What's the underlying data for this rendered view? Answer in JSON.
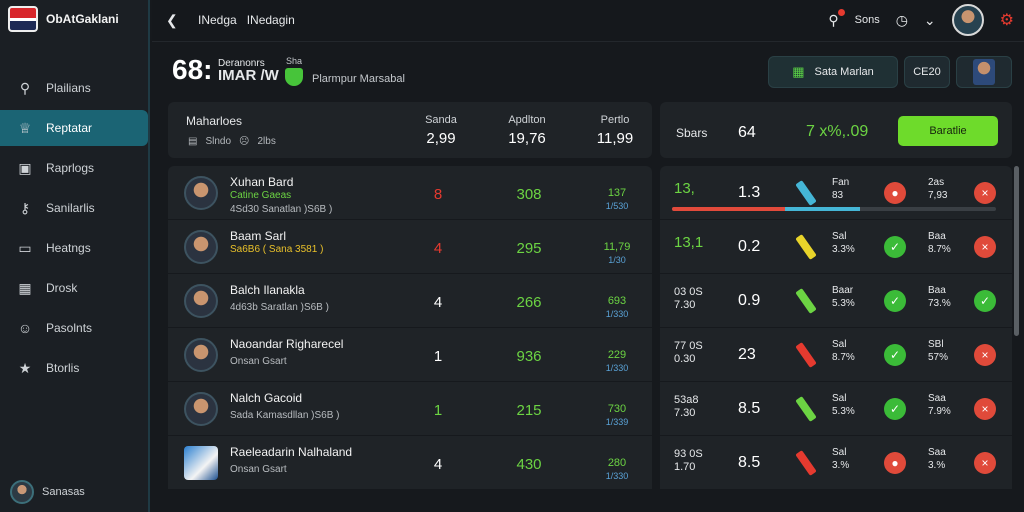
{
  "app": {
    "brand_name": "ObAtGaklani"
  },
  "sidebar": {
    "items": [
      {
        "label": "Plailians",
        "icon": "search-icon"
      },
      {
        "label": "Reptatar",
        "icon": "trophy-icon",
        "active": true
      },
      {
        "label": "Raprlogs",
        "icon": "image-icon"
      },
      {
        "label": "Sanilarlis",
        "icon": "key-icon"
      },
      {
        "label": "Heatngs",
        "icon": "message-icon"
      },
      {
        "label": "Drosk",
        "icon": "book-icon"
      },
      {
        "label": "Pasolnts",
        "icon": "user-icon"
      },
      {
        "label": "Btorlis",
        "icon": "star-icon"
      }
    ],
    "user_name": "Sanasas"
  },
  "topbar": {
    "crumbs": [
      "INedga",
      "INedagin"
    ],
    "search_label": "Sons"
  },
  "match": {
    "score": "68:",
    "score_line1": "Deranonrs",
    "score_line2": "IMAR /W",
    "badge_text": "Sha",
    "subtitle": "Plarmpur Marsabal",
    "primary_button": "Sata Marlan",
    "small_button": "CE20"
  },
  "stats": {
    "title": "Maharloes",
    "meta_a": "Slndo",
    "meta_b": "2lbs",
    "cols": [
      {
        "label": "Sanda",
        "value": "2,99"
      },
      {
        "label": "Apdlton",
        "value": "19,76"
      },
      {
        "label": "Pertlo",
        "value": "11,99"
      }
    ]
  },
  "odds_header": {
    "label": "Sbars",
    "value": "64",
    "green_value": "7  x%,.09",
    "button": "Baratlie"
  },
  "players": [
    {
      "name": "Xuhan Bard",
      "sub": "Catine Gaeas",
      "sub_color": "green",
      "sub2": "4Sd30 Sanatlan )S6B )",
      "c1": "8",
      "c1_color": "red",
      "c2": "308",
      "c3": "137",
      "c3b": "1/530"
    },
    {
      "name": "Baam Sarl",
      "sub": "Sa6B6 ( Sana 3581 )",
      "sub_color": "yellow",
      "sub2": "",
      "c1": "4",
      "c1_color": "red",
      "c2": "295",
      "c3": "11,79",
      "c3b": "1/30"
    },
    {
      "name": "Balch Ilanakla",
      "sub": "",
      "sub_color": "green",
      "sub2": "4d63b Saratlan )S6B )",
      "c1": "4",
      "c1_color": "white",
      "c2": "266",
      "c3": "693",
      "c3b": "1/330"
    },
    {
      "name": "Naoandar Righarecel",
      "sub": "",
      "sub_color": "green",
      "sub2": "Onsan Gsart",
      "c1": "1",
      "c1_color": "white",
      "c2": "936",
      "c3": "229",
      "c3b": "1/330"
    },
    {
      "name": "Nalch Gacoid",
      "sub": "",
      "sub_color": "green",
      "sub2": "Sada Kamasdllan )S6B )",
      "c1": "1",
      "c1_color": "green",
      "c2": "215",
      "c3": "730",
      "c3b": "1/339"
    },
    {
      "name": "Raeleadarin Nalhaland",
      "sub": "",
      "sub_color": "green",
      "sub2": "Onsan Gsart",
      "c1": "4",
      "c1_color": "white",
      "c2": "430",
      "c3": "280",
      "c3b": "1/330",
      "crest": true
    }
  ],
  "odds_rows": [
    {
      "a": "13,",
      "a_big": true,
      "b": "1.3",
      "bar_color": "#45b6d6",
      "c": "Fan\n83",
      "d_icon": "circle-icon",
      "d_color": "red",
      "e": "2as\n7,93",
      "f_icon": "close-icon",
      "f_color": "red",
      "progress_red": 0.35,
      "progress_blue": 0.23
    },
    {
      "a": "13,1",
      "a_big": true,
      "a_color": "yellow",
      "b": "0.2",
      "bar_color": "#e8d42a",
      "c": "Sal\n3.3%",
      "d_icon": "check-icon",
      "d_color": "green",
      "e": "Baa\n8.7%",
      "f_icon": "close-icon",
      "f_color": "red"
    },
    {
      "a": "03 0S\n7.30",
      "b": "0.9",
      "bar_color": "#6cd443",
      "c": "Baar\n5.3%",
      "d_icon": "check-icon",
      "d_color": "green",
      "e": "Baa\n73.%",
      "f_icon": "check-icon",
      "f_color": "green"
    },
    {
      "a": "77 0S\n0.30",
      "b": "23",
      "bar_color": "#e53a2f",
      "c": "Sal\n8.7%",
      "d_icon": "check-icon",
      "d_color": "green",
      "e": "SBl\n57%",
      "f_icon": "close-icon",
      "f_color": "red"
    },
    {
      "a": "53a8\n7.30",
      "b": "8.5",
      "bar_color": "#6cd443",
      "c": "Sal\n5.3%",
      "d_icon": "check-icon",
      "d_color": "green",
      "e": "Saa\n7.9%",
      "f_icon": "close-icon",
      "f_color": "red"
    },
    {
      "a": "93 0S\n1.70",
      "b": "8.5",
      "bar_color": "#e53a2f",
      "c": "Sal\n3.%",
      "d_icon": "circle-icon",
      "d_color": "red",
      "e": "Saa\n3.%",
      "f_icon": "close-icon",
      "f_color": "red"
    }
  ]
}
